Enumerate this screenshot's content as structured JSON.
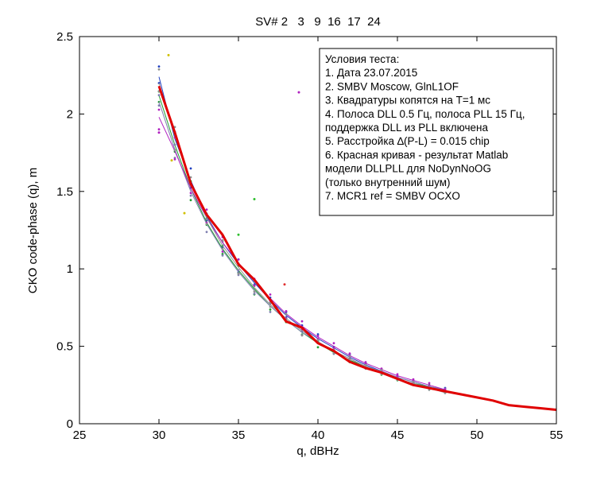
{
  "chart_data": {
    "type": "line",
    "title": "SV# 2   3   9  16  17  24",
    "xlabel": "q, dBHz",
    "ylabel": "CKO code-phase (q), m",
    "xlim": [
      25,
      55
    ],
    "ylim": [
      0,
      2.5
    ],
    "x_ticks": [
      25,
      30,
      35,
      40,
      45,
      50,
      55
    ],
    "y_ticks": [
      0,
      0.5,
      1,
      1.5,
      2,
      2.5
    ],
    "x_tick_labels": [
      "25",
      "30",
      "35",
      "40",
      "45",
      "50",
      "55"
    ],
    "y_tick_labels": [
      "0",
      "0.5",
      "1",
      "1.5",
      "2",
      "2.5"
    ],
    "grid": false,
    "annotation": {
      "placement": "top-right",
      "lines": [
        "Условия теста:",
        "1. Дата 23.07.2015",
        "2. SMBV Moscow, GlnL1OF",
        "3. Квадратуры копятся на T=1 мс",
        "4. Полоса DLL 0.5 Гц, полоса PLL 15 Гц,",
        "поддержка DLL из PLL включена",
        "5. Расстройка ∆(P-L) = 0.015 chip",
        "6. Красная кривая - результат Matlab",
        "модели DLLPLL для NoDynNoOG",
        "(только внутренний шум)",
        "7. MCR1 ref = SMBV OCXO"
      ]
    },
    "series": [
      {
        "color": "#e00000",
        "width": 3,
        "x": [
          30,
          31,
          32,
          33,
          34,
          35,
          36,
          37,
          38,
          39,
          40,
          41,
          42,
          43,
          44,
          45,
          46,
          47,
          48,
          49,
          50,
          51,
          52,
          53,
          54,
          55
        ],
        "values": [
          2.18,
          1.88,
          1.55,
          1.35,
          1.22,
          1.03,
          0.93,
          0.8,
          0.66,
          0.62,
          0.52,
          0.47,
          0.4,
          0.36,
          0.33,
          0.29,
          0.25,
          0.23,
          0.21,
          0.19,
          0.17,
          0.15,
          0.12,
          0.11,
          0.1,
          0.09
        ]
      },
      {
        "color": "#1f3fbf",
        "width": 1,
        "x": [
          30,
          31,
          32,
          33,
          34,
          35,
          36,
          37,
          38,
          39,
          40,
          41,
          42,
          43,
          44,
          45,
          46,
          47,
          48
        ],
        "values": [
          2.24,
          1.84,
          1.57,
          1.34,
          1.17,
          1.03,
          0.91,
          0.8,
          0.7,
          0.62,
          0.55,
          0.49,
          0.43,
          0.38,
          0.34,
          0.3,
          0.27,
          0.24,
          0.22
        ]
      },
      {
        "color": "#1f9f2f",
        "width": 1,
        "x": [
          30,
          31,
          32,
          33,
          34,
          35,
          36,
          37,
          38,
          39,
          40,
          41,
          42,
          43,
          44,
          45,
          46,
          47,
          48
        ],
        "values": [
          2.12,
          1.8,
          1.52,
          1.3,
          1.13,
          0.99,
          0.87,
          0.76,
          0.67,
          0.59,
          0.52,
          0.46,
          0.41,
          0.37,
          0.33,
          0.29,
          0.26,
          0.24,
          0.21
        ]
      },
      {
        "color": "#7f7fb0",
        "width": 1,
        "x": [
          30,
          31,
          32,
          33,
          34,
          35,
          36,
          37,
          38,
          39,
          40,
          41,
          42,
          43,
          44,
          45,
          46,
          47,
          48
        ],
        "values": [
          2.08,
          1.77,
          1.5,
          1.29,
          1.12,
          0.98,
          0.86,
          0.76,
          0.67,
          0.59,
          0.53,
          0.47,
          0.42,
          0.37,
          0.34,
          0.3,
          0.27,
          0.24,
          0.22
        ]
      },
      {
        "color": "#b020c0",
        "width": 1,
        "x": [
          30,
          31,
          32,
          33,
          34,
          35,
          36,
          37,
          38,
          39,
          40,
          41,
          42,
          43,
          44,
          45,
          46,
          47,
          48
        ],
        "values": [
          1.98,
          1.76,
          1.52,
          1.33,
          1.17,
          1.04,
          0.92,
          0.81,
          0.71,
          0.63,
          0.56,
          0.5,
          0.44,
          0.39,
          0.35,
          0.31,
          0.28,
          0.25,
          0.22
        ]
      },
      {
        "color": "#909090",
        "width": 1,
        "x": [
          30,
          31,
          32,
          33,
          34,
          35,
          36,
          37,
          38,
          39,
          40,
          41,
          42,
          43,
          44,
          45,
          46,
          47,
          48
        ],
        "values": [
          2.2,
          1.86,
          1.56,
          1.33,
          1.15,
          1.01,
          0.88,
          0.77,
          0.68,
          0.6,
          0.53,
          0.47,
          0.42,
          0.37,
          0.33,
          0.29,
          0.26,
          0.23,
          0.2
        ]
      }
    ],
    "outlier_points": [
      {
        "x": 30.6,
        "y": 2.38,
        "color": "#d0c000"
      },
      {
        "x": 38.8,
        "y": 2.14,
        "color": "#b020c0"
      },
      {
        "x": 36.0,
        "y": 1.45,
        "color": "#2fbf2f"
      },
      {
        "x": 37.9,
        "y": 0.9,
        "color": "#e03030"
      },
      {
        "x": 35.0,
        "y": 1.22,
        "color": "#2fbf2f"
      },
      {
        "x": 31.6,
        "y": 1.36,
        "color": "#d0c000"
      },
      {
        "x": 30.0,
        "y": 1.88,
        "color": "#b020c0"
      },
      {
        "x": 30.8,
        "y": 1.7,
        "color": "#d0c000"
      }
    ]
  }
}
